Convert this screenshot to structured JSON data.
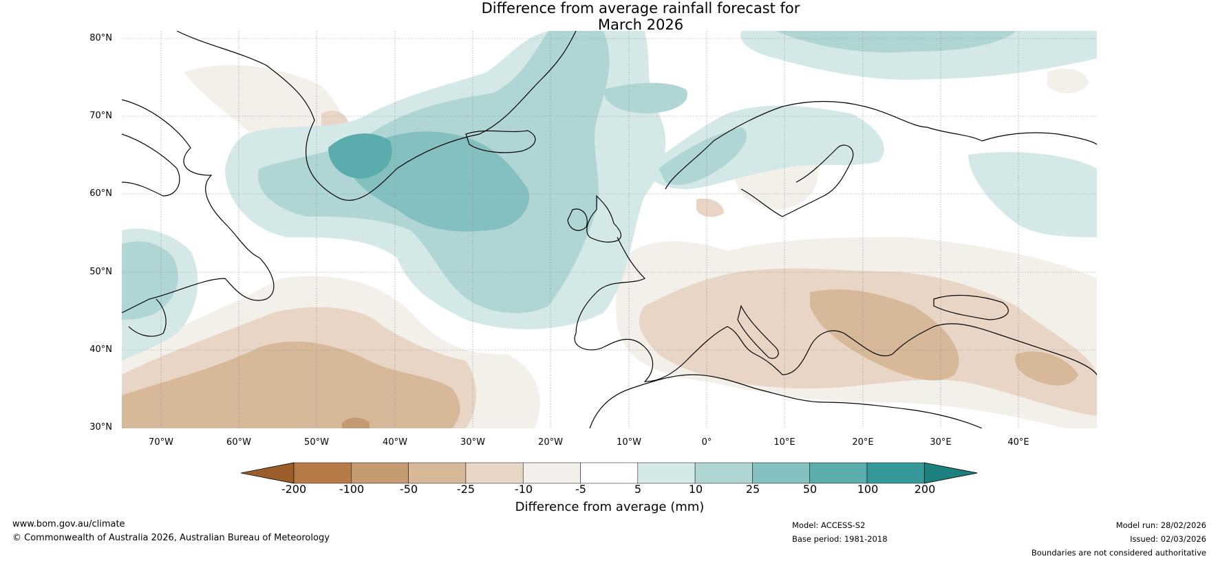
{
  "title": {
    "line1": "Difference from average rainfall forecast for",
    "line2": "March 2026"
  },
  "map": {
    "projection": "plate-carree",
    "lat_range": [
      30,
      80
    ],
    "lon_range": [
      -75,
      50
    ],
    "lat_ticks": [
      "80°N",
      "70°N",
      "60°N",
      "50°N",
      "40°N",
      "30°N"
    ],
    "lon_ticks": [
      "70°W",
      "60°W",
      "50°W",
      "40°W",
      "30°W",
      "20°W",
      "10°W",
      "0°",
      "10°E",
      "20°E",
      "30°E",
      "40°E"
    ],
    "gridlines": true
  },
  "colorbar": {
    "label": "Difference from average (mm)",
    "ticks": [
      "-200",
      "-100",
      "-50",
      "-25",
      "-10",
      "-5",
      "5",
      "10",
      "25",
      "50",
      "100",
      "200"
    ],
    "colors": [
      "#9b5d2a",
      "#b67a46",
      "#c49a72",
      "#d7b898",
      "#e8d5c5",
      "#f3efe9",
      "#ffffff",
      "#d4e8e8",
      "#afd5d5",
      "#84c0c0",
      "#5bacac",
      "#35999a",
      "#1f8080"
    ]
  },
  "footer": {
    "website": "www.bom.gov.au/climate",
    "copyright": "© Commonwealth of Australia 2026, Australian Bureau of Meteorology",
    "model": "Model: ACCESS-S2",
    "base_period": "Base period: 1981-2018",
    "model_run": "Model run: 28/02/2026",
    "issued": "Issued: 02/03/2026",
    "disclaimer": "Boundaries are not considered authoritative"
  }
}
